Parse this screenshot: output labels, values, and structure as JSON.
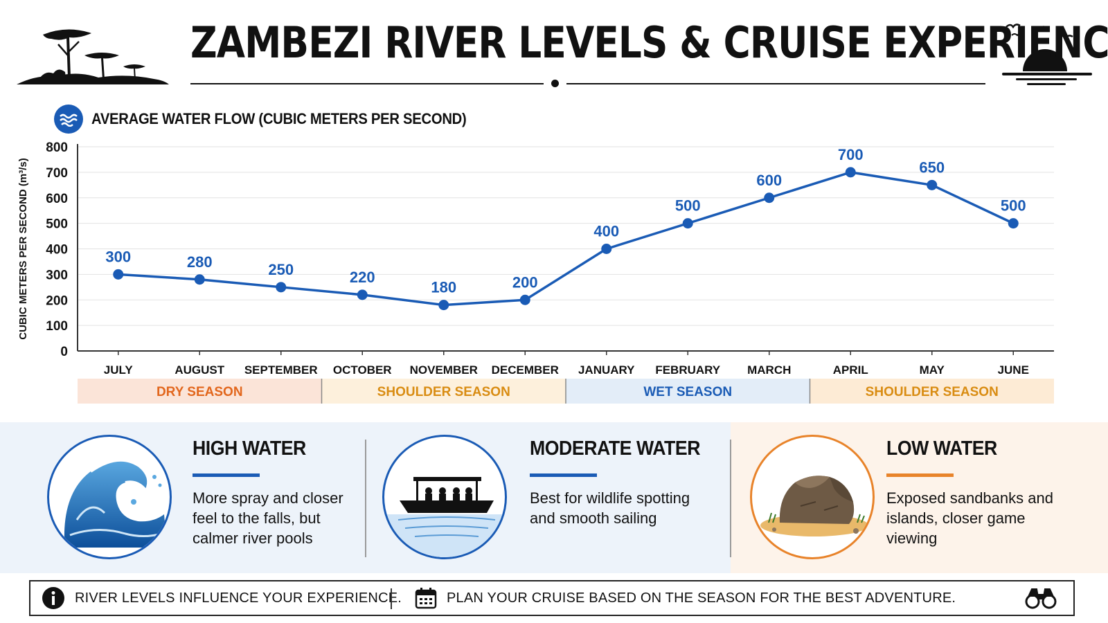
{
  "header": {
    "title": "ZAMBEZI RIVER LEVELS & CRUISE EXPERIENCE"
  },
  "chart_heading": {
    "text": "AVERAGE WATER FLOW (CUBIC METERS PER SECOND)",
    "icon": "water-waves-icon"
  },
  "chart_data": {
    "type": "line",
    "title": "AVERAGE WATER FLOW (CUBIC METERS PER SECOND)",
    "xlabel": "",
    "ylabel": "CUBIC METERS PER SECOND (m³/s)",
    "ylim": [
      0,
      800
    ],
    "yticks": [
      0,
      100,
      200,
      300,
      400,
      500,
      600,
      700,
      800
    ],
    "categories": [
      "JULY",
      "AUGUST",
      "SEPTEMBER",
      "OCTOBER",
      "NOVEMBER",
      "DECEMBER",
      "JANUARY",
      "FEBRUARY",
      "MARCH",
      "APRIL",
      "MAY",
      "JUNE"
    ],
    "series": [
      {
        "values": [
          300,
          280,
          250,
          220,
          180,
          200,
          400,
          500,
          600,
          700,
          650,
          500
        ]
      }
    ],
    "data_labels": [
      "300",
      "280",
      "250",
      "220",
      "180",
      "200",
      "400",
      "500",
      "600",
      "700",
      "650",
      "500"
    ],
    "grid": true,
    "line_color": "#1a5bb5",
    "seasons": [
      {
        "label": "DRY SEASON",
        "months": [
          "JULY",
          "AUGUST",
          "SEPTEMBER"
        ],
        "text_color": "#e2661c",
        "bg_color": "#fbe4d8"
      },
      {
        "label": "SHOULDER SEASON",
        "months": [
          "OCTOBER",
          "NOVEMBER",
          "DECEMBER"
        ],
        "text_color": "#d98c12",
        "bg_color": "#fdf0dc"
      },
      {
        "label": "WET SEASON",
        "months": [
          "JANUARY",
          "FEBRUARY",
          "MARCH"
        ],
        "text_color": "#1a5bb5",
        "bg_color": "#e3edf8"
      },
      {
        "label": "SHOULDER SEASON",
        "months": [
          "APRIL",
          "MAY",
          "JUNE"
        ],
        "text_color": "#d98c12",
        "bg_color": "#fdebd5"
      }
    ]
  },
  "cards": [
    {
      "title": "HIGH WATER",
      "description": "More spray and closer feel to the falls, but calmer river pools",
      "icon": "wave-icon",
      "accent": "#1a5bb5"
    },
    {
      "title": "MODERATE WATER",
      "description": "Best for wildlife spotting and smooth sailing",
      "icon": "boat-icon",
      "accent": "#1a5bb5"
    },
    {
      "title": "LOW WATER",
      "description": "Exposed sandbanks and islands, closer game viewing",
      "icon": "rock-icon",
      "accent": "#e8832a"
    }
  ],
  "footer": {
    "left_text": "RIVER LEVELS INFLUENCE YOUR EXPERIENCE.",
    "right_text": "PLAN YOUR CRUISE BASED ON THE SEASON FOR THE BEST ADVENTURE.",
    "left_icon": "info-icon",
    "right_icon": "calendar-icon",
    "end_icon": "binoculars-icon"
  }
}
